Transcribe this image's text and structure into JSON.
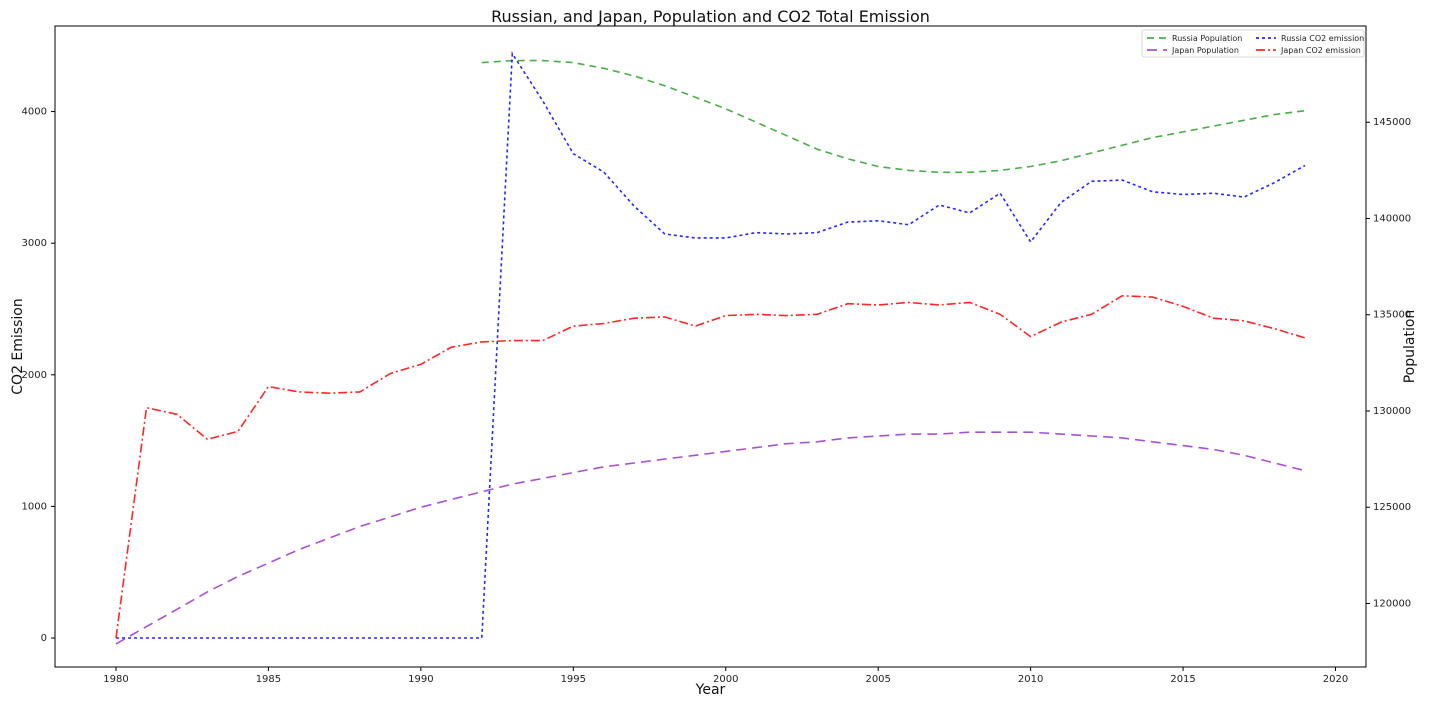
{
  "chart_data": {
    "type": "line",
    "title": "Russian, and Japan, Population and CO2 Total Emission",
    "xlabel": "Year",
    "ylabel_left": "CO2 Emission",
    "ylabel_right": "Population",
    "xlim": [
      1978,
      2021
    ],
    "ylim_left": [
      -220,
      4650
    ],
    "ylim_right": [
      116700,
      150000
    ],
    "x_ticks": [
      1980,
      1985,
      1990,
      1995,
      2000,
      2005,
      2010,
      2015,
      2020
    ],
    "y_left_ticks": [
      0,
      1000,
      2000,
      3000,
      4000
    ],
    "y_right_ticks": [
      120000,
      125000,
      130000,
      135000,
      140000,
      145000
    ],
    "grid": false,
    "legend_position": "top-right",
    "x": [
      1980,
      1981,
      1982,
      1983,
      1984,
      1985,
      1986,
      1987,
      1988,
      1989,
      1990,
      1991,
      1992,
      1993,
      1994,
      1995,
      1996,
      1997,
      1998,
      1999,
      2000,
      2001,
      2002,
      2003,
      2004,
      2005,
      2006,
      2007,
      2008,
      2009,
      2010,
      2011,
      2012,
      2013,
      2014,
      2015,
      2016,
      2017,
      2018,
      2019
    ],
    "series": [
      {
        "name": "Russia Population",
        "axis": "right",
        "color": "#2ca02c",
        "dash": "7,5",
        "x": [
          1992,
          1993,
          1994,
          1995,
          1996,
          1997,
          1998,
          1999,
          2000,
          2001,
          2002,
          2003,
          2004,
          2005,
          2006,
          2007,
          2008,
          2009,
          2010,
          2011,
          2012,
          2013,
          2014,
          2015,
          2016,
          2017,
          2018,
          2019
        ],
        "values": [
          148100,
          148200,
          148200,
          148100,
          147800,
          147400,
          146900,
          146300,
          145700,
          145000,
          144300,
          143600,
          143100,
          142700,
          142500,
          142400,
          142400,
          142500,
          142700,
          143000,
          143400,
          143800,
          144200,
          144500,
          144800,
          145100,
          145400,
          145600
        ]
      },
      {
        "name": "Japan Population",
        "axis": "right",
        "color": "#9932cc",
        "dash": "10,6",
        "x": [
          1980,
          1981,
          1982,
          1983,
          1984,
          1985,
          1986,
          1987,
          1988,
          1989,
          1990,
          1991,
          1992,
          1993,
          1994,
          1995,
          1996,
          1997,
          1998,
          1999,
          2000,
          2001,
          2002,
          2003,
          2004,
          2005,
          2006,
          2007,
          2008,
          2009,
          2010,
          2011,
          2012,
          2013,
          2014,
          2015,
          2016,
          2017,
          2018,
          2019
        ],
        "values": [
          117900,
          118800,
          119700,
          120600,
          121400,
          122100,
          122800,
          123400,
          124000,
          124500,
          125000,
          125400,
          125800,
          126200,
          126500,
          126800,
          127100,
          127300,
          127500,
          127700,
          127900,
          128100,
          128300,
          128400,
          128600,
          128700,
          128800,
          128800,
          128900,
          128900,
          128900,
          128800,
          128700,
          128600,
          128400,
          128200,
          128000,
          127700,
          127300,
          126900
        ]
      },
      {
        "name": "Russia CO2 emission",
        "axis": "left",
        "color": "#0000ff",
        "dash": "3,3",
        "x": [
          1980,
          1981,
          1982,
          1983,
          1984,
          1985,
          1986,
          1987,
          1988,
          1989,
          1990,
          1991,
          1992,
          1993,
          1994,
          1995,
          1996,
          1997,
          1998,
          1999,
          2000,
          2001,
          2002,
          2003,
          2004,
          2005,
          2006,
          2007,
          2008,
          2009,
          2010,
          2011,
          2012,
          2013,
          2014,
          2015,
          2016,
          2017,
          2018,
          2019
        ],
        "values": [
          0,
          0,
          0,
          0,
          0,
          0,
          0,
          0,
          0,
          0,
          0,
          0,
          0,
          4440,
          4080,
          3680,
          3540,
          3280,
          3070,
          3040,
          3040,
          3080,
          3070,
          3080,
          3160,
          3170,
          3140,
          3290,
          3230,
          3380,
          3010,
          3310,
          3470,
          3480,
          3390,
          3370,
          3380,
          3350,
          3460,
          3590
        ]
      },
      {
        "name": "Japan CO2 emission",
        "axis": "left",
        "color": "#ff0000",
        "dash": "9,3,2,3",
        "x": [
          1980,
          1981,
          1982,
          1983,
          1984,
          1985,
          1986,
          1987,
          1988,
          1989,
          1990,
          1991,
          1992,
          1993,
          1994,
          1995,
          1996,
          1997,
          1998,
          1999,
          2000,
          2001,
          2002,
          2003,
          2004,
          2005,
          2006,
          2007,
          2008,
          2009,
          2010,
          2011,
          2012,
          2013,
          2014,
          2015,
          2016,
          2017,
          2018,
          2019
        ],
        "values": [
          0,
          1750,
          1700,
          1510,
          1570,
          1910,
          1870,
          1860,
          1870,
          2010,
          2080,
          2210,
          2250,
          2260,
          2260,
          2370,
          2390,
          2430,
          2440,
          2370,
          2450,
          2460,
          2450,
          2460,
          2540,
          2530,
          2550,
          2530,
          2550,
          2460,
          2290,
          2400,
          2460,
          2600,
          2590,
          2520,
          2430,
          2410,
          2350,
          2280
        ]
      }
    ]
  }
}
